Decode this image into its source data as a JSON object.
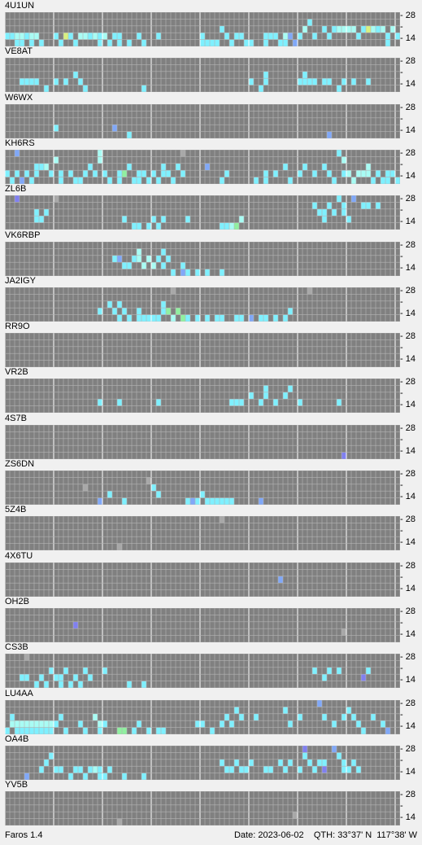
{
  "app": {
    "name_version": "Faros 1.4"
  },
  "status_bar": {
    "date_label": "Date:",
    "date": "2023-06-02",
    "qth_label": "QTH:",
    "qth": "33°37' N  117°38' W"
  },
  "band_axis": {
    "top_label": "28",
    "mid_label": "-",
    "bottom_label": "14"
  },
  "colors": {
    "empty": "#808080",
    "cyan": "#7ff0ff",
    "light_cyan": "#a8fcf4",
    "green": "#90f0a0",
    "yellow_green": "#d8f080",
    "blue": "#80a8f8",
    "purple": "#8080f0",
    "gray": "#a8a8a8"
  },
  "grid": {
    "columns": 80,
    "rows": 5,
    "divider_every": 10
  },
  "stations": [
    {
      "callsign": "4U1UN",
      "spots": [
        "cyan:0:3",
        "cyan:1:3",
        "cyan:2:3",
        "light_cyan:3:3",
        "light_cyan:4:3",
        "cyan:5:3",
        "light_cyan:6:3",
        "light_cyan:7:3",
        "cyan:2:4",
        "cyan:4:4",
        "cyan:6:4",
        "cyan:9:4",
        "cyan:12:3",
        "cyan:14:4",
        "yellow_green:15:3",
        "cyan:16:3",
        "cyan:17:4",
        "yellow_green:18:3",
        "light_cyan:19:3",
        "light_cyan:20:3",
        "cyan:21:3",
        "light_cyan:22:3",
        "cyan:23:4",
        "cyan:24:3",
        "light_cyan:25:3",
        "cyan:26:4",
        "cyan:27:3",
        "cyan:28:4",
        "cyan:29:3",
        "cyan:31:4",
        "cyan:33:3",
        "cyan:35:4",
        "cyan:38:3",
        "cyan:49:3",
        "cyan:50:4",
        "cyan:51:4",
        "cyan:52:4",
        "cyan:53:4",
        "cyan:54:2",
        "cyan:56:3",
        "cyan:57:4",
        "cyan:58:3",
        "cyan:59:3",
        "cyan:61:4",
        "cyan:62:4",
        "cyan:65:3",
        "cyan:66:4",
        "cyan:67:3",
        "cyan:68:3",
        "cyan:69:4",
        "light_cyan:70:3",
        "cyan:71:4",
        "blue:72:3",
        "blue:73:4",
        "cyan:74:3",
        "light_cyan:75:2",
        "cyan:77:1",
        "cyan:78:3",
        "cyan:80:2",
        "cyan:81:2",
        "cyan:82:3",
        "cyan:83:2",
        "light_cyan:84:2",
        "light_cyan:85:2",
        "light_cyan:86:2",
        "light_cyan:87:2",
        "light_cyan:88:2",
        "cyan:89:3",
        "cyan:90:2",
        "light_cyan:91:2",
        "yellow_green:92:2",
        "light_cyan:93:2",
        "cyan:94:2",
        "light_cyan:95:2",
        "cyan:96:3",
        "cyan:97:4",
        "light_cyan:98:2",
        "cyan:99:3"
      ]
    },
    {
      "callsign": "VE8AT",
      "spots": [
        "cyan:4:3",
        "cyan:5:3",
        "cyan:6:3",
        "cyan:7:3",
        "cyan:8:3",
        "cyan:10:4",
        "cyan:12:3",
        "cyan:15:3",
        "cyan:17:2",
        "cyan:18:3",
        "cyan:20:4",
        "cyan:35:4",
        "cyan:62:3",
        "cyan:64:4",
        "cyan:65:3",
        "cyan:66:2",
        "cyan:74:3",
        "cyan:75:2",
        "cyan:76:3",
        "cyan:77:3",
        "cyan:78:3",
        "cyan:81:3",
        "cyan:82:3",
        "cyan:84:4",
        "cyan:86:3",
        "cyan:88:3",
        "cyan:91:3"
      ]
    },
    {
      "callsign": "W6WX",
      "spots": [
        "cyan:12:3",
        "blue:27:3",
        "cyan:31:4",
        "blue:82:4"
      ]
    },
    {
      "callsign": "KH6RS",
      "spots": [
        "blue:3:0",
        "cyan:0:3",
        "cyan:1:4",
        "cyan:2:3",
        "blue:4:4",
        "cyan:5:3",
        "cyan:6:4",
        "cyan:7:2",
        "cyan:8:3",
        "cyan:9:2",
        "light_cyan:10:2",
        "cyan:11:3",
        "light_cyan:12:1",
        "cyan:13:3",
        "cyan:14:4",
        "cyan:16:3",
        "cyan:17:4",
        "cyan:19:4",
        "cyan:20:3",
        "cyan:21:2",
        "cyan:22:3",
        "light_cyan:23:0",
        "light_cyan:24:1",
        "cyan:25:3",
        "cyan:26:4",
        "cyan:28:3",
        "cyan:29:4",
        "green:30:3",
        "cyan:31:2",
        "cyan:32:4",
        "cyan:33:3",
        "cyan:34:4",
        "cyan:35:3",
        "cyan:36:4",
        "cyan:37:3",
        "cyan:38:4",
        "cyan:39:3",
        "cyan:40:2",
        "cyan:41:3",
        "cyan:42:4",
        "cyan:43:2",
        "cyan:44:3",
        "gray:44:0",
        "blue:51:2",
        "cyan:54:4",
        "cyan:56:3",
        "cyan:63:4",
        "cyan:65:3",
        "cyan:66:4",
        "cyan:68:3",
        "cyan:70:2",
        "cyan:72:4",
        "cyan:74:3",
        "cyan:76:2",
        "cyan:78:3",
        "cyan:80:2",
        "cyan:82:3",
        "cyan:83:4",
        "cyan:84:0",
        "light_cyan:85:1",
        "cyan:86:3",
        "light_cyan:87:3",
        "light_cyan:88:4",
        "light_cyan:89:3",
        "light_cyan:90:3",
        "light_cyan:91:2",
        "light_cyan:92:3",
        "cyan:93:4",
        "cyan:94:3",
        "cyan:95:4",
        "cyan:96:3",
        "cyan:97:4",
        "cyan:98:3",
        "cyan:99:4"
      ]
    },
    {
      "callsign": "ZL6B",
      "spots": [
        "purple:3:0",
        "gray:12:0",
        "cyan:7:3",
        "cyan:8:2",
        "cyan:9:3",
        "cyan:10:2",
        "cyan:30:3",
        "cyan:32:4",
        "cyan:33:4",
        "cyan:34:4",
        "cyan:36:4",
        "cyan:37:3",
        "cyan:38:4",
        "cyan:39:3",
        "cyan:46:3",
        "cyan:55:4",
        "cyan:56:4",
        "light_cyan:57:4",
        "green:58:4",
        "light_cyan:59:3",
        "cyan:78:1",
        "cyan:79:2",
        "cyan:80:2",
        "cyan:81:3",
        "cyan:82:1",
        "cyan:83:2",
        "cyan:84:0",
        "cyan:85:1",
        "cyan:86:2",
        "cyan:87:3",
        "blue:88:0",
        "cyan:90:1",
        "cyan:92:1",
        "cyan:94:1"
      ]
    },
    {
      "callsign": "VK6RBP",
      "spots": [
        "cyan:27:2",
        "blue:29:2",
        "cyan:30:3",
        "cyan:31:3",
        "cyan:32:2",
        "light_cyan:33:1",
        "light_cyan:34:2",
        "light_cyan:35:3",
        "light_cyan:36:2",
        "light_cyan:37:3",
        "cyan:38:2",
        "cyan:39:1",
        "cyan:40:3",
        "cyan:41:2",
        "cyan:42:4",
        "cyan:44:3",
        "blue:45:4",
        "cyan:46:4",
        "cyan:48:4",
        "cyan:51:4",
        "cyan:55:4"
      ]
    },
    {
      "callsign": "JA2IGY",
      "spots": [
        "cyan:24:3",
        "cyan:26:2",
        "cyan:27:3",
        "cyan:28:4",
        "cyan:29:2",
        "cyan:30:3",
        "cyan:31:4",
        "cyan:33:4",
        "cyan:34:3",
        "cyan:35:4",
        "cyan:36:4",
        "cyan:37:4",
        "cyan:38:4",
        "cyan:39:2",
        "cyan:40:3",
        "green:41:3",
        "light_cyan:42:4",
        "green:43:3",
        "yellow_green:44:4",
        "green:45:4",
        "gray:42:0",
        "cyan:46:4",
        "cyan:48:4",
        "cyan:51:4",
        "cyan:53:4",
        "cyan:55:4",
        "cyan:58:4",
        "cyan:60:4",
        "blue:62:4",
        "cyan:64:4",
        "cyan:66:4",
        "cyan:68:4",
        "cyan:70:4",
        "cyan:72:3",
        "gray:77:0"
      ]
    },
    {
      "callsign": "RR9O",
      "spots": []
    },
    {
      "callsign": "VR2B",
      "spots": [
        "cyan:24:3",
        "cyan:28:3",
        "cyan:38:3",
        "cyan:57:3",
        "cyan:58:3",
        "cyan:59:3",
        "cyan:60:3",
        "cyan:62:2",
        "cyan:64:3",
        "cyan:65:1",
        "cyan:66:2",
        "cyan:68:3",
        "cyan:70:2",
        "cyan:72:1",
        "cyan:74:3",
        "cyan:84:3"
      ]
    },
    {
      "callsign": "4S7B",
      "spots": [
        "purple:85:4"
      ]
    },
    {
      "callsign": "ZS6DN",
      "spots": [
        "gray:20:2",
        "cyan:23:4",
        "blue:24:4",
        "cyan:26:3",
        "cyan:30:4",
        "gray:36:1",
        "cyan:37:2",
        "cyan:38:3",
        "cyan:46:4",
        "blue:47:4",
        "cyan:48:4",
        "cyan:50:3",
        "cyan:51:4",
        "cyan:52:4",
        "cyan:53:4",
        "cyan:54:4",
        "cyan:55:4",
        "cyan:56:4",
        "cyan:57:4",
        "blue:64:4"
      ]
    },
    {
      "callsign": "5Z4B",
      "spots": [
        "gray:29:4",
        "gray:54:0"
      ]
    },
    {
      "callsign": "4X6TU",
      "spots": [
        "blue:69:2"
      ]
    },
    {
      "callsign": "OH2B",
      "spots": [
        "purple:17:2",
        "gray:85:3"
      ]
    },
    {
      "callsign": "CS3B",
      "spots": [
        "gray:5:0",
        "cyan:4:3",
        "cyan:5:3",
        "cyan:8:4",
        "cyan:9:3",
        "cyan:10:4",
        "cyan:11:2",
        "cyan:12:3",
        "cyan:13:4",
        "cyan:14:3",
        "cyan:15:2",
        "cyan:16:4",
        "cyan:17:3",
        "cyan:18:4",
        "cyan:20:2",
        "cyan:21:3",
        "cyan:25:2",
        "cyan:31:4",
        "cyan:35:4",
        "cyan:78:2",
        "cyan:80:3",
        "cyan:82:2",
        "cyan:84:2",
        "purple:90:3",
        "cyan:92:2"
      ]
    },
    {
      "callsign": "LU4AA",
      "spots": [
        "cyan:0:4",
        "light_cyan:1:3",
        "light_cyan:2:3",
        "light_cyan:3:3",
        "light_cyan:4:3",
        "light_cyan:5:3",
        "light_cyan:6:3",
        "light_cyan:7:3",
        "light_cyan:8:3",
        "light_cyan:9:3",
        "light_cyan:10:3",
        "light_cyan:11:3",
        "cyan:1:2",
        "cyan:2:4",
        "cyan:3:4",
        "cyan:4:4",
        "cyan:5:4",
        "cyan:6:4",
        "cyan:7:4",
        "cyan:8:4",
        "cyan:9:4",
        "cyan:10:4",
        "cyan:11:4",
        "cyan:12:3",
        "cyan:14:2",
        "cyan:15:4",
        "cyan:18:3",
        "cyan:20:4",
        "light_cyan:22:2",
        "light_cyan:23:3",
        "cyan:24:4",
        "cyan:25:3",
        "green:28:4",
        "green:29:4",
        "green:30:4",
        "cyan:32:4",
        "cyan:34:3",
        "cyan:36:4",
        "cyan:38:4",
        "cyan:40:4",
        "cyan:48:3",
        "green:49:3",
        "cyan:50:3",
        "cyan:52:4",
        "cyan:54:3",
        "cyan:56:2",
        "cyan:57:3",
        "cyan:58:1",
        "cyan:59:2",
        "cyan:63:2",
        "cyan:70:1",
        "cyan:72:3",
        "cyan:74:2",
        "blue:79:0",
        "cyan:81:2",
        "cyan:83:3",
        "cyan:85:2",
        "cyan:86:2",
        "cyan:87:1",
        "cyan:88:2",
        "cyan:89:3",
        "cyan:90:4",
        "cyan:93:2",
        "cyan:95:3",
        "blue:96:4"
      ]
    },
    {
      "callsign": "OA4B",
      "spots": [
        "blue:5:4",
        "cyan:9:3",
        "cyan:10:2",
        "cyan:11:1",
        "cyan:12:3",
        "cyan:14:3",
        "cyan:16:4",
        "cyan:17:3",
        "cyan:19:3",
        "cyan:20:4",
        "cyan:21:3",
        "light_cyan:22:3",
        "cyan:23:4",
        "cyan:24:3",
        "cyan:25:4",
        "cyan:26:3",
        "cyan:30:4",
        "cyan:35:4",
        "cyan:55:2",
        "cyan:56:3",
        "cyan:57:3",
        "cyan:58:2",
        "cyan:60:3",
        "cyan:61:3",
        "cyan:62:2",
        "cyan:65:3",
        "cyan:67:3",
        "cyan:69:2",
        "cyan:70:3",
        "cyan:72:2",
        "cyan:74:3",
        "purple:75:0",
        "cyan:76:1",
        "cyan:77:2",
        "cyan:78:3",
        "cyan:79:2",
        "cyan:80:3",
        "cyan:81:2",
        "purple:81:3",
        "blue:83:0",
        "cyan:84:1",
        "cyan:85:2",
        "cyan:86:3",
        "cyan:87:3",
        "cyan:88:2",
        "cyan:89:3"
      ]
    },
    {
      "callsign": "YV5B",
      "spots": [
        "gray:29:4",
        "gray:73:3"
      ]
    }
  ]
}
